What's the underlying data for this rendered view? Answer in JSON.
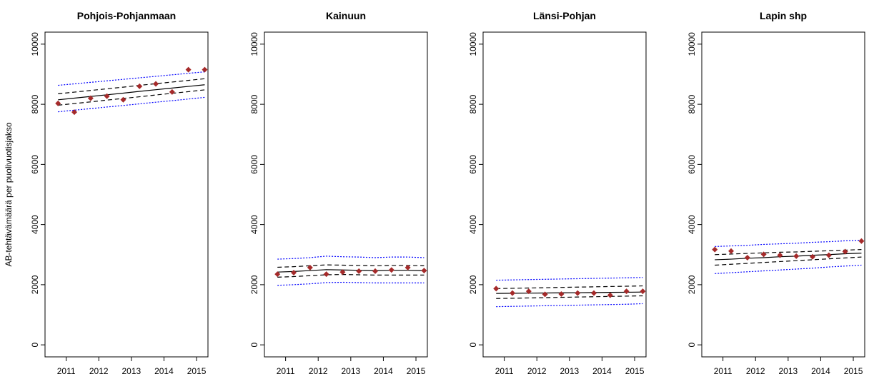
{
  "chart_data": [
    {
      "type": "line",
      "title": "Pohjois-Pohjanmaan",
      "ylabel": "AB-tehtävämäärä per puolivuotisjakso",
      "x": [
        2010.75,
        2011.25,
        2011.75,
        2012.25,
        2012.75,
        2013.25,
        2013.75,
        2014.25,
        2014.75,
        2015.25
      ],
      "xlim": [
        2010.35,
        2015.35
      ],
      "xticks": [
        2011,
        2012,
        2013,
        2014,
        2015
      ],
      "ylim": [
        -400,
        10400
      ],
      "yticks": [
        0,
        2000,
        4000,
        6000,
        8000,
        10000
      ],
      "series": [
        {
          "style": "dotted",
          "color": "#0000ff",
          "values": [
            8630,
            8680,
            8730,
            8780,
            8830,
            8880,
            8930,
            8980,
            9030,
            9080
          ]
        },
        {
          "style": "dotted",
          "color": "#0000ff",
          "values": [
            7750,
            7805,
            7855,
            7910,
            7960,
            8015,
            8070,
            8120,
            8175,
            8230
          ]
        },
        {
          "style": "dashed",
          "color": "#000000",
          "values": [
            8350,
            8405,
            8460,
            8515,
            8570,
            8630,
            8685,
            8740,
            8795,
            8850
          ]
        },
        {
          "style": "dashed",
          "color": "#000000",
          "values": [
            7970,
            8025,
            8080,
            8140,
            8195,
            8250,
            8310,
            8365,
            8420,
            8480
          ]
        },
        {
          "style": "solid",
          "color": "#000000",
          "values": [
            8150,
            8205,
            8260,
            8315,
            8370,
            8430,
            8485,
            8540,
            8595,
            8650
          ]
        },
        {
          "style": "points",
          "color": "#a52a2a",
          "values": [
            8030,
            7740,
            8200,
            8270,
            8150,
            8600,
            8680,
            8410,
            9150,
            9150
          ]
        }
      ]
    },
    {
      "type": "line",
      "title": "Kainuun",
      "x": [
        2010.75,
        2011.25,
        2011.75,
        2012.25,
        2012.75,
        2013.25,
        2013.75,
        2014.25,
        2014.75,
        2015.25
      ],
      "xlim": [
        2010.35,
        2015.35
      ],
      "xticks": [
        2011,
        2012,
        2013,
        2014,
        2015
      ],
      "ylim": [
        -400,
        10400
      ],
      "yticks": [
        0,
        2000,
        4000,
        6000,
        8000,
        10000
      ],
      "series": [
        {
          "style": "dotted",
          "color": "#0000ff",
          "values": [
            2850,
            2870,
            2900,
            2950,
            2930,
            2920,
            2900,
            2920,
            2920,
            2900
          ]
        },
        {
          "style": "dotted",
          "color": "#0000ff",
          "values": [
            1980,
            2000,
            2030,
            2070,
            2080,
            2070,
            2060,
            2060,
            2060,
            2060
          ]
        },
        {
          "style": "dashed",
          "color": "#000000",
          "values": [
            2580,
            2600,
            2630,
            2660,
            2650,
            2640,
            2630,
            2640,
            2640,
            2630
          ]
        },
        {
          "style": "dashed",
          "color": "#000000",
          "values": [
            2250,
            2270,
            2300,
            2330,
            2340,
            2330,
            2320,
            2320,
            2320,
            2320
          ]
        },
        {
          "style": "solid",
          "color": "#000000",
          "values": [
            2420,
            2440,
            2470,
            2500,
            2490,
            2480,
            2470,
            2480,
            2480,
            2470
          ]
        },
        {
          "style": "points",
          "color": "#a52a2a",
          "values": [
            2350,
            2400,
            2570,
            2350,
            2420,
            2450,
            2450,
            2490,
            2570,
            2470
          ]
        }
      ]
    },
    {
      "type": "line",
      "title": "Länsi-Pohjan",
      "x": [
        2010.75,
        2011.25,
        2011.75,
        2012.25,
        2012.75,
        2013.25,
        2013.75,
        2014.25,
        2014.75,
        2015.25
      ],
      "xlim": [
        2010.35,
        2015.35
      ],
      "xticks": [
        2011,
        2012,
        2013,
        2014,
        2015
      ],
      "ylim": [
        -400,
        10400
      ],
      "yticks": [
        0,
        2000,
        4000,
        6000,
        8000,
        10000
      ],
      "series": [
        {
          "style": "dotted",
          "color": "#0000ff",
          "values": [
            2150,
            2160,
            2170,
            2180,
            2190,
            2200,
            2210,
            2220,
            2230,
            2240
          ]
        },
        {
          "style": "dotted",
          "color": "#0000ff",
          "values": [
            1270,
            1280,
            1290,
            1300,
            1310,
            1320,
            1330,
            1340,
            1350,
            1370
          ]
        },
        {
          "style": "dashed",
          "color": "#000000",
          "values": [
            1870,
            1880,
            1890,
            1900,
            1910,
            1920,
            1930,
            1940,
            1950,
            1960
          ]
        },
        {
          "style": "dashed",
          "color": "#000000",
          "values": [
            1540,
            1550,
            1560,
            1570,
            1580,
            1590,
            1600,
            1610,
            1620,
            1630
          ]
        },
        {
          "style": "solid",
          "color": "#000000",
          "values": [
            1710,
            1715,
            1720,
            1725,
            1730,
            1735,
            1740,
            1745,
            1750,
            1755
          ]
        },
        {
          "style": "points",
          "color": "#a52a2a",
          "values": [
            1870,
            1720,
            1780,
            1680,
            1690,
            1720,
            1720,
            1650,
            1780,
            1780
          ]
        }
      ]
    },
    {
      "type": "line",
      "title": "Lapin shp",
      "x": [
        2010.75,
        2011.25,
        2011.75,
        2012.25,
        2012.75,
        2013.25,
        2013.75,
        2014.25,
        2014.75,
        2015.25
      ],
      "xlim": [
        2010.35,
        2015.35
      ],
      "xticks": [
        2011,
        2012,
        2013,
        2014,
        2015
      ],
      "ylim": [
        -400,
        10400
      ],
      "yticks": [
        0,
        2000,
        4000,
        6000,
        8000,
        10000
      ],
      "series": [
        {
          "style": "dotted",
          "color": "#0000ff",
          "values": [
            3270,
            3290,
            3310,
            3340,
            3360,
            3380,
            3410,
            3430,
            3460,
            3480
          ]
        },
        {
          "style": "dotted",
          "color": "#0000ff",
          "values": [
            2370,
            2400,
            2430,
            2460,
            2490,
            2520,
            2550,
            2590,
            2620,
            2650
          ]
        },
        {
          "style": "dashed",
          "color": "#000000",
          "values": [
            3000,
            3020,
            3040,
            3060,
            3080,
            3090,
            3110,
            3130,
            3150,
            3170
          ]
        },
        {
          "style": "dashed",
          "color": "#000000",
          "values": [
            2650,
            2680,
            2710,
            2740,
            2770,
            2800,
            2830,
            2860,
            2890,
            2920
          ]
        },
        {
          "style": "solid",
          "color": "#000000",
          "values": [
            2830,
            2850,
            2880,
            2900,
            2930,
            2950,
            2980,
            3000,
            3030,
            3050
          ]
        },
        {
          "style": "points",
          "color": "#a52a2a",
          "values": [
            3170,
            3120,
            2900,
            3010,
            2980,
            2950,
            2930,
            2980,
            3100,
            3450
          ]
        }
      ]
    }
  ]
}
